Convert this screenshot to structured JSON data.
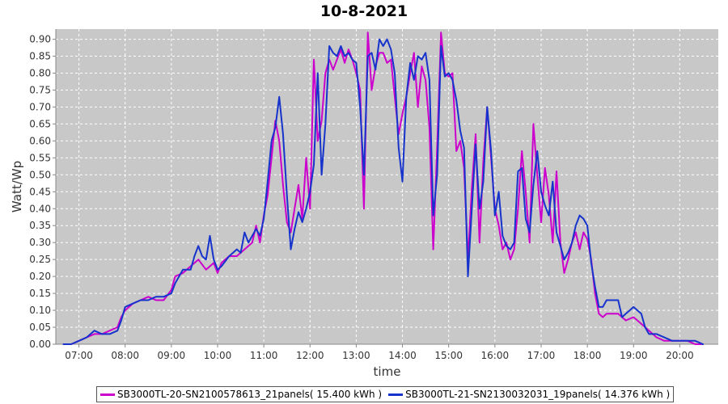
{
  "chart_data": {
    "type": "line",
    "title": "10-8-2021",
    "xlabel": "time",
    "ylabel": "Watt/Wp",
    "xlim": [
      "06:30",
      "20:50"
    ],
    "ylim": [
      0.0,
      0.93
    ],
    "grid": true,
    "legend_position": "bottom",
    "x_ticks": [
      "07:00",
      "08:00",
      "09:00",
      "10:00",
      "11:00",
      "12:00",
      "13:00",
      "14:00",
      "15:00",
      "16:00",
      "17:00",
      "18:00",
      "19:00",
      "20:00"
    ],
    "y_ticks": [
      "0.00",
      "0.05",
      "0.10",
      "0.15",
      "0.20",
      "0.25",
      "0.30",
      "0.35",
      "0.40",
      "0.45",
      "0.50",
      "0.55",
      "0.60",
      "0.65",
      "0.70",
      "0.75",
      "0.80",
      "0.85",
      "0.90"
    ],
    "series": [
      {
        "name": "SB3000TL-20-SN2100578613_21panels( 15.400 kWh )",
        "color": "#cc00cc",
        "points": [
          [
            "06:40",
            0.0
          ],
          [
            "06:50",
            0.0
          ],
          [
            "07:00",
            0.01
          ],
          [
            "07:10",
            0.02
          ],
          [
            "07:20",
            0.03
          ],
          [
            "07:30",
            0.03
          ],
          [
            "07:40",
            0.04
          ],
          [
            "07:50",
            0.05
          ],
          [
            "07:55",
            0.08
          ],
          [
            "08:00",
            0.1
          ],
          [
            "08:10",
            0.12
          ],
          [
            "08:20",
            0.13
          ],
          [
            "08:30",
            0.14
          ],
          [
            "08:40",
            0.13
          ],
          [
            "08:50",
            0.13
          ],
          [
            "09:00",
            0.16
          ],
          [
            "09:05",
            0.2
          ],
          [
            "09:15",
            0.21
          ],
          [
            "09:25",
            0.23
          ],
          [
            "09:35",
            0.25
          ],
          [
            "09:45",
            0.22
          ],
          [
            "09:55",
            0.24
          ],
          [
            "10:00",
            0.21
          ],
          [
            "10:05",
            0.24
          ],
          [
            "10:15",
            0.26
          ],
          [
            "10:25",
            0.26
          ],
          [
            "10:35",
            0.28
          ],
          [
            "10:45",
            0.3
          ],
          [
            "10:50",
            0.35
          ],
          [
            "10:55",
            0.3
          ],
          [
            "11:00",
            0.38
          ],
          [
            "11:05",
            0.44
          ],
          [
            "11:10",
            0.55
          ],
          [
            "11:15",
            0.66
          ],
          [
            "11:20",
            0.6
          ],
          [
            "11:25",
            0.47
          ],
          [
            "11:30",
            0.36
          ],
          [
            "11:35",
            0.33
          ],
          [
            "11:40",
            0.4
          ],
          [
            "11:45",
            0.47
          ],
          [
            "11:50",
            0.37
          ],
          [
            "11:55",
            0.55
          ],
          [
            "12:00",
            0.4
          ],
          [
            "12:05",
            0.84
          ],
          [
            "12:10",
            0.6
          ],
          [
            "12:15",
            0.66
          ],
          [
            "12:20",
            0.8
          ],
          [
            "12:25",
            0.84
          ],
          [
            "12:30",
            0.81
          ],
          [
            "12:35",
            0.84
          ],
          [
            "12:40",
            0.87
          ],
          [
            "12:45",
            0.83
          ],
          [
            "12:50",
            0.87
          ],
          [
            "12:55",
            0.84
          ],
          [
            "13:00",
            0.8
          ],
          [
            "13:05",
            0.75
          ],
          [
            "13:10",
            0.4
          ],
          [
            "13:15",
            0.92
          ],
          [
            "13:20",
            0.75
          ],
          [
            "13:25",
            0.82
          ],
          [
            "13:30",
            0.86
          ],
          [
            "13:35",
            0.86
          ],
          [
            "13:40",
            0.83
          ],
          [
            "13:45",
            0.84
          ],
          [
            "13:50",
            0.73
          ],
          [
            "13:55",
            0.62
          ],
          [
            "14:00",
            0.68
          ],
          [
            "14:05",
            0.73
          ],
          [
            "14:10",
            0.8
          ],
          [
            "14:15",
            0.86
          ],
          [
            "14:20",
            0.7
          ],
          [
            "14:25",
            0.82
          ],
          [
            "14:30",
            0.78
          ],
          [
            "14:35",
            0.64
          ],
          [
            "14:40",
            0.28
          ],
          [
            "14:45",
            0.58
          ],
          [
            "14:50",
            0.92
          ],
          [
            "14:55",
            0.8
          ],
          [
            "15:00",
            0.79
          ],
          [
            "15:05",
            0.8
          ],
          [
            "15:10",
            0.57
          ],
          [
            "15:15",
            0.6
          ],
          [
            "15:20",
            0.52
          ],
          [
            "15:25",
            0.25
          ],
          [
            "15:30",
            0.46
          ],
          [
            "15:35",
            0.62
          ],
          [
            "15:40",
            0.3
          ],
          [
            "15:45",
            0.54
          ],
          [
            "15:50",
            0.7
          ],
          [
            "15:55",
            0.55
          ],
          [
            "16:00",
            0.4
          ],
          [
            "16:05",
            0.35
          ],
          [
            "16:10",
            0.28
          ],
          [
            "16:15",
            0.3
          ],
          [
            "16:20",
            0.25
          ],
          [
            "16:25",
            0.28
          ],
          [
            "16:30",
            0.4
          ],
          [
            "16:35",
            0.57
          ],
          [
            "16:40",
            0.45
          ],
          [
            "16:45",
            0.3
          ],
          [
            "16:50",
            0.65
          ],
          [
            "16:55",
            0.5
          ],
          [
            "17:00",
            0.36
          ],
          [
            "17:05",
            0.52
          ],
          [
            "17:10",
            0.44
          ],
          [
            "17:15",
            0.3
          ],
          [
            "17:20",
            0.51
          ],
          [
            "17:25",
            0.3
          ],
          [
            "17:30",
            0.21
          ],
          [
            "17:35",
            0.25
          ],
          [
            "17:40",
            0.3
          ],
          [
            "17:45",
            0.33
          ],
          [
            "17:50",
            0.28
          ],
          [
            "17:55",
            0.33
          ],
          [
            "18:00",
            0.31
          ],
          [
            "18:05",
            0.25
          ],
          [
            "18:10",
            0.15
          ],
          [
            "18:15",
            0.09
          ],
          [
            "18:20",
            0.08
          ],
          [
            "18:25",
            0.09
          ],
          [
            "18:30",
            0.09
          ],
          [
            "18:40",
            0.09
          ],
          [
            "18:50",
            0.07
          ],
          [
            "19:00",
            0.08
          ],
          [
            "19:10",
            0.06
          ],
          [
            "19:20",
            0.04
          ],
          [
            "19:30",
            0.02
          ],
          [
            "19:40",
            0.01
          ],
          [
            "19:50",
            0.01
          ],
          [
            "20:00",
            0.01
          ],
          [
            "20:10",
            0.01
          ],
          [
            "20:20",
            0.0
          ],
          [
            "20:30",
            0.0
          ]
        ]
      },
      {
        "name": "SB3000TL-21-SN2130032031_19panels( 14.376 kWh )",
        "color": "#1633cc",
        "points": [
          [
            "06:40",
            0.0
          ],
          [
            "06:50",
            0.0
          ],
          [
            "07:00",
            0.01
          ],
          [
            "07:10",
            0.02
          ],
          [
            "07:20",
            0.04
          ],
          [
            "07:30",
            0.03
          ],
          [
            "07:40",
            0.03
          ],
          [
            "07:50",
            0.04
          ],
          [
            "07:55",
            0.07
          ],
          [
            "08:00",
            0.11
          ],
          [
            "08:10",
            0.12
          ],
          [
            "08:20",
            0.13
          ],
          [
            "08:30",
            0.13
          ],
          [
            "08:40",
            0.14
          ],
          [
            "08:50",
            0.14
          ],
          [
            "09:00",
            0.15
          ],
          [
            "09:05",
            0.18
          ],
          [
            "09:15",
            0.22
          ],
          [
            "09:25",
            0.22
          ],
          [
            "09:30",
            0.26
          ],
          [
            "09:35",
            0.29
          ],
          [
            "09:40",
            0.26
          ],
          [
            "09:45",
            0.25
          ],
          [
            "09:50",
            0.32
          ],
          [
            "09:55",
            0.25
          ],
          [
            "10:00",
            0.22
          ],
          [
            "10:05",
            0.23
          ],
          [
            "10:15",
            0.26
          ],
          [
            "10:25",
            0.28
          ],
          [
            "10:30",
            0.27
          ],
          [
            "10:35",
            0.33
          ],
          [
            "10:40",
            0.3
          ],
          [
            "10:50",
            0.34
          ],
          [
            "10:55",
            0.32
          ],
          [
            "11:00",
            0.37
          ],
          [
            "11:05",
            0.48
          ],
          [
            "11:10",
            0.6
          ],
          [
            "11:15",
            0.64
          ],
          [
            "11:20",
            0.73
          ],
          [
            "11:25",
            0.62
          ],
          [
            "11:30",
            0.44
          ],
          [
            "11:35",
            0.28
          ],
          [
            "11:40",
            0.34
          ],
          [
            "11:45",
            0.39
          ],
          [
            "11:50",
            0.36
          ],
          [
            "11:55",
            0.4
          ],
          [
            "12:00",
            0.45
          ],
          [
            "12:05",
            0.53
          ],
          [
            "12:10",
            0.8
          ],
          [
            "12:15",
            0.5
          ],
          [
            "12:20",
            0.65
          ],
          [
            "12:25",
            0.88
          ],
          [
            "12:30",
            0.86
          ],
          [
            "12:35",
            0.85
          ],
          [
            "12:40",
            0.88
          ],
          [
            "12:45",
            0.85
          ],
          [
            "12:50",
            0.86
          ],
          [
            "12:55",
            0.84
          ],
          [
            "13:00",
            0.83
          ],
          [
            "13:05",
            0.7
          ],
          [
            "13:10",
            0.5
          ],
          [
            "13:15",
            0.85
          ],
          [
            "13:20",
            0.86
          ],
          [
            "13:25",
            0.81
          ],
          [
            "13:30",
            0.9
          ],
          [
            "13:35",
            0.88
          ],
          [
            "13:40",
            0.9
          ],
          [
            "13:45",
            0.87
          ],
          [
            "13:50",
            0.8
          ],
          [
            "13:55",
            0.58
          ],
          [
            "14:00",
            0.48
          ],
          [
            "14:05",
            0.73
          ],
          [
            "14:10",
            0.83
          ],
          [
            "14:15",
            0.78
          ],
          [
            "14:20",
            0.85
          ],
          [
            "14:25",
            0.84
          ],
          [
            "14:30",
            0.86
          ],
          [
            "14:35",
            0.78
          ],
          [
            "14:40",
            0.38
          ],
          [
            "14:45",
            0.5
          ],
          [
            "14:50",
            0.88
          ],
          [
            "14:55",
            0.79
          ],
          [
            "15:00",
            0.8
          ],
          [
            "15:05",
            0.78
          ],
          [
            "15:10",
            0.72
          ],
          [
            "15:15",
            0.63
          ],
          [
            "15:20",
            0.58
          ],
          [
            "15:25",
            0.2
          ],
          [
            "15:30",
            0.4
          ],
          [
            "15:35",
            0.59
          ],
          [
            "15:40",
            0.4
          ],
          [
            "15:45",
            0.48
          ],
          [
            "15:50",
            0.7
          ],
          [
            "15:55",
            0.57
          ],
          [
            "16:00",
            0.38
          ],
          [
            "16:05",
            0.45
          ],
          [
            "16:10",
            0.32
          ],
          [
            "16:15",
            0.29
          ],
          [
            "16:20",
            0.28
          ],
          [
            "16:25",
            0.3
          ],
          [
            "16:30",
            0.51
          ],
          [
            "16:35",
            0.52
          ],
          [
            "16:40",
            0.37
          ],
          [
            "16:45",
            0.33
          ],
          [
            "16:50",
            0.47
          ],
          [
            "16:55",
            0.57
          ],
          [
            "17:00",
            0.45
          ],
          [
            "17:05",
            0.41
          ],
          [
            "17:10",
            0.38
          ],
          [
            "17:15",
            0.48
          ],
          [
            "17:20",
            0.33
          ],
          [
            "17:25",
            0.29
          ],
          [
            "17:30",
            0.25
          ],
          [
            "17:35",
            0.27
          ],
          [
            "17:40",
            0.3
          ],
          [
            "17:45",
            0.35
          ],
          [
            "17:50",
            0.38
          ],
          [
            "17:55",
            0.37
          ],
          [
            "18:00",
            0.35
          ],
          [
            "18:05",
            0.24
          ],
          [
            "18:10",
            0.17
          ],
          [
            "18:15",
            0.11
          ],
          [
            "18:20",
            0.11
          ],
          [
            "18:25",
            0.13
          ],
          [
            "18:30",
            0.13
          ],
          [
            "18:40",
            0.13
          ],
          [
            "18:45",
            0.08
          ],
          [
            "18:50",
            0.09
          ],
          [
            "18:55",
            0.1
          ],
          [
            "19:00",
            0.11
          ],
          [
            "19:05",
            0.1
          ],
          [
            "19:10",
            0.09
          ],
          [
            "19:15",
            0.05
          ],
          [
            "19:20",
            0.03
          ],
          [
            "19:30",
            0.03
          ],
          [
            "19:40",
            0.02
          ],
          [
            "19:50",
            0.01
          ],
          [
            "20:00",
            0.01
          ],
          [
            "20:10",
            0.01
          ],
          [
            "20:20",
            0.01
          ],
          [
            "20:30",
            0.0
          ]
        ]
      }
    ]
  }
}
